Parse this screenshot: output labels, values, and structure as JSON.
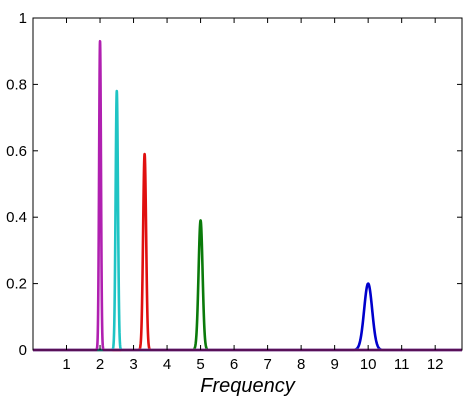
{
  "chart_data": {
    "type": "line",
    "title": "",
    "xlabel": "Frequency",
    "ylabel": "",
    "xlim": [
      0,
      12.8
    ],
    "ylim": [
      0,
      1
    ],
    "xticks": [
      1,
      2,
      3,
      4,
      5,
      6,
      7,
      8,
      9,
      10,
      11,
      12
    ],
    "yticks": [
      0,
      0.2,
      0.4,
      0.6,
      0.8,
      1
    ],
    "ytick_labels": [
      "0",
      "0.2",
      "0.4",
      "0.6",
      "0.8",
      "1"
    ],
    "grid": false,
    "legend": "none",
    "series": [
      {
        "color": "#0000cc",
        "peak_x": 10.0,
        "peak_y": 0.2,
        "width": 0.12
      },
      {
        "color": "#0a7a0a",
        "peak_x": 5.0,
        "peak_y": 0.39,
        "width": 0.06
      },
      {
        "color": "#e01010",
        "peak_x": 3.33,
        "peak_y": 0.59,
        "width": 0.045
      },
      {
        "color": "#1fc4c4",
        "peak_x": 2.5,
        "peak_y": 0.78,
        "width": 0.035
      },
      {
        "color": "#b020b0",
        "peak_x": 2.0,
        "peak_y": 0.93,
        "width": 0.028
      }
    ]
  }
}
